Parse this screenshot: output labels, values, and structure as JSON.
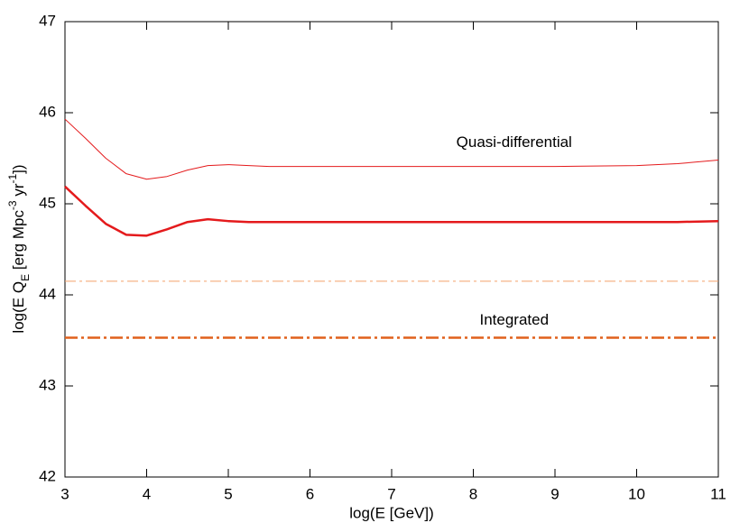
{
  "chart_data": {
    "type": "line",
    "xlabel": "log(E [GeV])",
    "ylabel": {
      "parts": [
        {
          "text": "log(E Q",
          "shift": "none"
        },
        {
          "text": "E",
          "shift": "sub"
        },
        {
          "text": " [erg Mpc",
          "shift": "none"
        },
        {
          "text": "-3",
          "shift": "super"
        },
        {
          "text": " yr",
          "shift": "none"
        },
        {
          "text": "-1",
          "shift": "super"
        },
        {
          "text": "])",
          "shift": "none"
        }
      ]
    },
    "xlim": [
      3,
      11
    ],
    "xticks": [
      3,
      4,
      5,
      6,
      7,
      8,
      9,
      10,
      11
    ],
    "ylim": [
      42,
      47
    ],
    "yticks": [
      42,
      43,
      44,
      45,
      46,
      47
    ],
    "series": [
      {
        "color": "#e41a1c",
        "width": 1,
        "dash": "solid",
        "x": [
          3,
          3.25,
          3.5,
          3.75,
          4,
          4.25,
          4.5,
          4.75,
          5,
          5.25,
          5.5,
          6,
          7,
          8,
          9,
          10,
          10.5,
          11
        ],
        "values": [
          45.93,
          45.72,
          45.5,
          45.33,
          45.27,
          45.3,
          45.37,
          45.42,
          45.43,
          45.42,
          45.41,
          45.41,
          45.41,
          45.41,
          45.41,
          45.42,
          45.44,
          45.48
        ]
      },
      {
        "color": "#e41a1c",
        "width": 2.5,
        "dash": "solid",
        "x": [
          3,
          3.25,
          3.5,
          3.75,
          4,
          4.25,
          4.5,
          4.75,
          5,
          5.25,
          5.5,
          6,
          7,
          8,
          9,
          10,
          10.5,
          11
        ],
        "values": [
          45.19,
          44.98,
          44.78,
          44.66,
          44.65,
          44.72,
          44.8,
          44.83,
          44.81,
          44.8,
          44.8,
          44.8,
          44.8,
          44.8,
          44.8,
          44.8,
          44.8,
          44.81
        ]
      },
      {
        "color": "#f4a06a",
        "width": 1,
        "dash": "dashdot",
        "x": [
          3,
          11
        ],
        "values": [
          44.15,
          44.15
        ]
      },
      {
        "color": "#e0601c",
        "width": 2.5,
        "dash": "dashdot",
        "x": [
          3,
          11
        ],
        "values": [
          43.53,
          43.53
        ]
      }
    ],
    "annotations": [
      {
        "text": "Quasi-differential",
        "x": 8.5,
        "y": 45.67
      },
      {
        "text": "Integrated",
        "x": 8.5,
        "y": 43.72
      }
    ]
  }
}
